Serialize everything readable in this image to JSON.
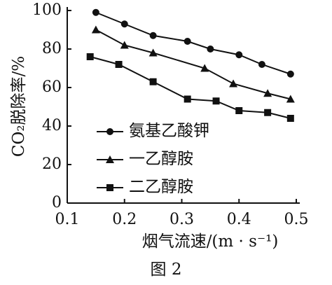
{
  "chart_data": {
    "type": "line",
    "ylabel": "CO₂脱除率/%",
    "xlabel": "烟气流速/(m · s⁻¹)",
    "caption": "图 2",
    "xlim": [
      0.1,
      0.5
    ],
    "xticks": [
      0.1,
      0.2,
      0.3,
      0.4,
      0.5
    ],
    "ylim": [
      0,
      100
    ],
    "yticks": [
      0,
      20,
      40,
      60,
      80,
      100
    ],
    "legend": "lower left",
    "series": [
      {
        "name": "氨基乙酸钾",
        "color": "#111111",
        "marker": "circle",
        "x": [
          0.15,
          0.2,
          0.25,
          0.31,
          0.35,
          0.4,
          0.44,
          0.49
        ],
        "values": [
          99,
          93,
          87,
          84,
          80,
          77,
          72,
          67
        ]
      },
      {
        "name": "一乙醇胺",
        "color": "#111111",
        "marker": "triangle",
        "x": [
          0.15,
          0.2,
          0.25,
          0.34,
          0.39,
          0.45,
          0.49
        ],
        "values": [
          90,
          82,
          78,
          70,
          62,
          57,
          54
        ]
      },
      {
        "name": "二乙醇胺",
        "color": "#111111",
        "marker": "square",
        "x": [
          0.14,
          0.19,
          0.25,
          0.31,
          0.36,
          0.4,
          0.45,
          0.49
        ],
        "values": [
          76,
          72,
          63,
          54,
          53,
          48,
          47,
          44
        ]
      }
    ]
  }
}
